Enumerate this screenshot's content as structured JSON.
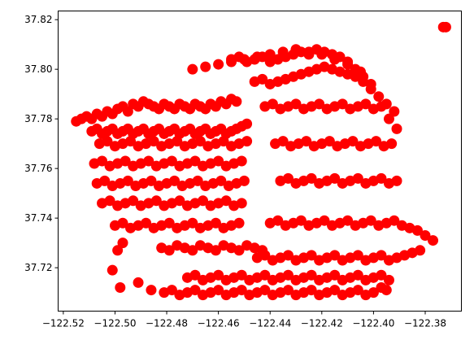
{
  "chart_data": {
    "type": "scatter",
    "title": "",
    "xlabel": "",
    "ylabel": "",
    "xlim": [
      -122.522,
      -122.366
    ],
    "ylim": [
      37.7025,
      37.8235
    ],
    "xticks": [
      -122.52,
      -122.5,
      -122.48,
      -122.46,
      -122.44,
      -122.42,
      -122.4,
      -122.38
    ],
    "xtick_labels": [
      "−122.52",
      "−122.50",
      "−122.48",
      "−122.46",
      "−122.44",
      "−122.42",
      "−122.40",
      "−122.38"
    ],
    "yticks": [
      37.72,
      37.74,
      37.76,
      37.78,
      37.8,
      37.82
    ],
    "ytick_labels": [
      "37.72",
      "37.74",
      "37.76",
      "37.78",
      "37.80",
      "37.82"
    ],
    "grid": false,
    "legend": "none",
    "marker_color": "#ff0000",
    "series": [
      {
        "x": [
          -122.515,
          -122.513,
          -122.511,
          -122.509,
          -122.507,
          -122.505,
          -122.503,
          -122.501,
          -122.499,
          -122.497,
          -122.495,
          -122.493,
          -122.491,
          -122.489,
          -122.487,
          -122.485,
          -122.483,
          -122.481,
          -122.479,
          -122.477,
          -122.475,
          -122.473,
          -122.471,
          -122.469,
          -122.467,
          -122.465,
          -122.463,
          -122.461,
          -122.459,
          -122.457,
          -122.455,
          -122.453,
          -122.509,
          -122.507,
          -122.505,
          -122.503,
          -122.501,
          -122.499,
          -122.497,
          -122.495,
          -122.493,
          -122.491,
          -122.489,
          -122.487,
          -122.485,
          -122.483,
          -122.481,
          -122.479,
          -122.477,
          -122.475,
          -122.473,
          -122.471,
          -122.469,
          -122.467,
          -122.465,
          -122.463,
          -122.461,
          -122.459,
          -122.457,
          -122.455,
          -122.453,
          -122.451,
          -122.449,
          -122.506,
          -122.503,
          -122.5,
          -122.497,
          -122.494,
          -122.491,
          -122.488,
          -122.485,
          -122.482,
          -122.479,
          -122.476,
          -122.473,
          -122.47,
          -122.467,
          -122.464,
          -122.461,
          -122.458,
          -122.455,
          -122.452,
          -122.449,
          -122.508,
          -122.505,
          -122.502,
          -122.499,
          -122.496,
          -122.493,
          -122.49,
          -122.487,
          -122.484,
          -122.481,
          -122.478,
          -122.475,
          -122.472,
          -122.469,
          -122.466,
          -122.463,
          -122.46,
          -122.457,
          -122.454,
          -122.451,
          -122.507,
          -122.504,
          -122.501,
          -122.498,
          -122.495,
          -122.492,
          -122.489,
          -122.486,
          -122.483,
          -122.48,
          -122.477,
          -122.474,
          -122.471,
          -122.468,
          -122.465,
          -122.462,
          -122.459,
          -122.456,
          -122.453,
          -122.45,
          -122.505,
          -122.502,
          -122.499,
          -122.496,
          -122.493,
          -122.49,
          -122.487,
          -122.484,
          -122.481,
          -122.478,
          -122.475,
          -122.472,
          -122.469,
          -122.466,
          -122.463,
          -122.46,
          -122.457,
          -122.454,
          -122.451,
          -122.5,
          -122.497,
          -122.494,
          -122.491,
          -122.488,
          -122.485,
          -122.482,
          -122.479,
          -122.476,
          -122.473,
          -122.47,
          -122.467,
          -122.464,
          -122.461,
          -122.458,
          -122.455,
          -122.452,
          -122.482,
          -122.479,
          -122.476,
          -122.473,
          -122.47,
          -122.467,
          -122.464,
          -122.461,
          -122.458,
          -122.455,
          -122.452,
          -122.449,
          -122.446,
          -122.443,
          -122.455,
          -122.452,
          -122.449,
          -122.446,
          -122.443,
          -122.44,
          -122.437,
          -122.434,
          -122.431,
          -122.428,
          -122.425,
          -122.422,
          -122.419,
          -122.416,
          -122.413,
          -122.41,
          -122.407,
          -122.404,
          -122.401,
          -122.446,
          -122.443,
          -122.44,
          -122.437,
          -122.434,
          -122.431,
          -122.428,
          -122.425,
          -122.422,
          -122.419,
          -122.416,
          -122.413,
          -122.41,
          -122.407,
          -122.404,
          -122.401,
          -122.398,
          -122.395,
          -122.392,
          -122.442,
          -122.439,
          -122.436,
          -122.433,
          -122.43,
          -122.427,
          -122.424,
          -122.421,
          -122.418,
          -122.415,
          -122.412,
          -122.409,
          -122.406,
          -122.403,
          -122.4,
          -122.397,
          -122.394,
          -122.391,
          -122.438,
          -122.435,
          -122.432,
          -122.429,
          -122.426,
          -122.423,
          -122.42,
          -122.417,
          -122.414,
          -122.411,
          -122.408,
          -122.405,
          -122.402,
          -122.399,
          -122.396,
          -122.393,
          -122.436,
          -122.433,
          -122.43,
          -122.427,
          -122.424,
          -122.421,
          -122.418,
          -122.415,
          -122.412,
          -122.409,
          -122.406,
          -122.403,
          -122.4,
          -122.397,
          -122.394,
          -122.391,
          -122.44,
          -122.437,
          -122.434,
          -122.431,
          -122.428,
          -122.425,
          -122.422,
          -122.419,
          -122.416,
          -122.413,
          -122.41,
          -122.407,
          -122.404,
          -122.401,
          -122.398,
          -122.395,
          -122.392,
          -122.389,
          -122.386,
          -122.383,
          -122.38,
          -122.377,
          -122.445,
          -122.442,
          -122.439,
          -122.436,
          -122.433,
          -122.43,
          -122.427,
          -122.424,
          -122.421,
          -122.418,
          -122.415,
          -122.412,
          -122.409,
          -122.406,
          -122.403,
          -122.4,
          -122.397,
          -122.394,
          -122.391,
          -122.388,
          -122.385,
          -122.382,
          -122.472,
          -122.469,
          -122.466,
          -122.463,
          -122.46,
          -122.457,
          -122.454,
          -122.451,
          -122.448,
          -122.445,
          -122.442,
          -122.439,
          -122.436,
          -122.433,
          -122.43,
          -122.427,
          -122.424,
          -122.421,
          -122.418,
          -122.415,
          -122.412,
          -122.409,
          -122.406,
          -122.403,
          -122.4,
          -122.397,
          -122.394,
          -122.481,
          -122.478,
          -122.475,
          -122.472,
          -122.469,
          -122.466,
          -122.463,
          -122.46,
          -122.457,
          -122.454,
          -122.451,
          -122.448,
          -122.445,
          -122.442,
          -122.439,
          -122.436,
          -122.433,
          -122.43,
          -122.427,
          -122.424,
          -122.421,
          -122.418,
          -122.415,
          -122.412,
          -122.409,
          -122.406,
          -122.403,
          -122.4,
          -122.47,
          -122.465,
          -122.46,
          -122.455,
          -122.45,
          -122.445,
          -122.44,
          -122.435,
          -122.43,
          -122.425,
          -122.42,
          -122.415,
          -122.41,
          -122.405,
          -122.497,
          -122.499,
          -122.501,
          -122.498,
          -122.491,
          -122.486,
          -122.373,
          -122.372,
          -122.395,
          -122.397
        ],
        "y": [
          37.779,
          37.78,
          37.781,
          37.78,
          37.782,
          37.781,
          37.783,
          37.782,
          37.784,
          37.785,
          37.783,
          37.786,
          37.785,
          37.787,
          37.786,
          37.785,
          37.784,
          37.786,
          37.785,
          37.784,
          37.786,
          37.785,
          37.784,
          37.786,
          37.785,
          37.784,
          37.786,
          37.785,
          37.787,
          37.786,
          37.788,
          37.787,
          37.775,
          37.776,
          37.774,
          37.775,
          37.776,
          37.774,
          37.775,
          37.776,
          37.774,
          37.775,
          37.776,
          37.774,
          37.775,
          37.776,
          37.774,
          37.775,
          37.776,
          37.774,
          37.775,
          37.776,
          37.774,
          37.775,
          37.776,
          37.774,
          37.775,
          37.776,
          37.774,
          37.775,
          37.776,
          37.777,
          37.778,
          37.77,
          37.771,
          37.769,
          37.77,
          37.771,
          37.769,
          37.77,
          37.771,
          37.769,
          37.77,
          37.771,
          37.769,
          37.77,
          37.771,
          37.769,
          37.77,
          37.771,
          37.769,
          37.77,
          37.771,
          37.762,
          37.763,
          37.761,
          37.762,
          37.763,
          37.761,
          37.762,
          37.763,
          37.761,
          37.762,
          37.763,
          37.761,
          37.762,
          37.763,
          37.761,
          37.762,
          37.763,
          37.761,
          37.762,
          37.763,
          37.754,
          37.755,
          37.753,
          37.754,
          37.755,
          37.753,
          37.754,
          37.755,
          37.753,
          37.754,
          37.755,
          37.753,
          37.754,
          37.755,
          37.753,
          37.754,
          37.755,
          37.753,
          37.754,
          37.755,
          37.746,
          37.747,
          37.745,
          37.746,
          37.747,
          37.745,
          37.746,
          37.747,
          37.745,
          37.746,
          37.747,
          37.745,
          37.746,
          37.747,
          37.745,
          37.746,
          37.747,
          37.745,
          37.746,
          37.737,
          37.738,
          37.736,
          37.737,
          37.738,
          37.736,
          37.737,
          37.738,
          37.736,
          37.737,
          37.738,
          37.736,
          37.737,
          37.738,
          37.736,
          37.737,
          37.738,
          37.728,
          37.727,
          37.729,
          37.728,
          37.727,
          37.729,
          37.728,
          37.727,
          37.729,
          37.728,
          37.727,
          37.729,
          37.728,
          37.727,
          37.804,
          37.805,
          37.803,
          37.804,
          37.805,
          37.803,
          37.804,
          37.805,
          37.806,
          37.807,
          37.806,
          37.808,
          37.807,
          37.806,
          37.805,
          37.803,
          37.8,
          37.797,
          37.794,
          37.795,
          37.796,
          37.794,
          37.795,
          37.796,
          37.797,
          37.798,
          37.799,
          37.8,
          37.801,
          37.8,
          37.799,
          37.798,
          37.797,
          37.795,
          37.792,
          37.789,
          37.786,
          37.783,
          37.785,
          37.786,
          37.784,
          37.785,
          37.786,
          37.784,
          37.785,
          37.786,
          37.784,
          37.785,
          37.786,
          37.784,
          37.785,
          37.786,
          37.784,
          37.785,
          37.78,
          37.776,
          37.77,
          37.771,
          37.769,
          37.77,
          37.771,
          37.769,
          37.77,
          37.771,
          37.769,
          37.77,
          37.771,
          37.769,
          37.77,
          37.771,
          37.769,
          37.77,
          37.755,
          37.756,
          37.754,
          37.755,
          37.756,
          37.754,
          37.755,
          37.756,
          37.754,
          37.755,
          37.756,
          37.754,
          37.755,
          37.756,
          37.754,
          37.755,
          37.738,
          37.739,
          37.737,
          37.738,
          37.739,
          37.737,
          37.738,
          37.739,
          37.737,
          37.738,
          37.739,
          37.737,
          37.738,
          37.739,
          37.737,
          37.738,
          37.739,
          37.737,
          37.736,
          37.735,
          37.733,
          37.731,
          37.724,
          37.725,
          37.723,
          37.724,
          37.725,
          37.723,
          37.724,
          37.725,
          37.723,
          37.724,
          37.725,
          37.723,
          37.724,
          37.725,
          37.723,
          37.724,
          37.725,
          37.723,
          37.724,
          37.725,
          37.726,
          37.727,
          37.716,
          37.717,
          37.715,
          37.716,
          37.717,
          37.715,
          37.716,
          37.717,
          37.715,
          37.716,
          37.717,
          37.715,
          37.716,
          37.717,
          37.715,
          37.716,
          37.717,
          37.715,
          37.716,
          37.717,
          37.715,
          37.716,
          37.717,
          37.715,
          37.716,
          37.717,
          37.715,
          37.71,
          37.711,
          37.709,
          37.71,
          37.711,
          37.709,
          37.71,
          37.711,
          37.709,
          37.71,
          37.711,
          37.709,
          37.71,
          37.711,
          37.709,
          37.71,
          37.711,
          37.709,
          37.71,
          37.711,
          37.709,
          37.71,
          37.711,
          37.709,
          37.71,
          37.711,
          37.709,
          37.71,
          37.8,
          37.801,
          37.802,
          37.803,
          37.804,
          37.805,
          37.806,
          37.807,
          37.808,
          37.807,
          37.806,
          37.804,
          37.802,
          37.799,
          37.73,
          37.727,
          37.719,
          37.712,
          37.714,
          37.711,
          37.817,
          37.817,
          37.711,
          37.712
        ]
      }
    ]
  }
}
